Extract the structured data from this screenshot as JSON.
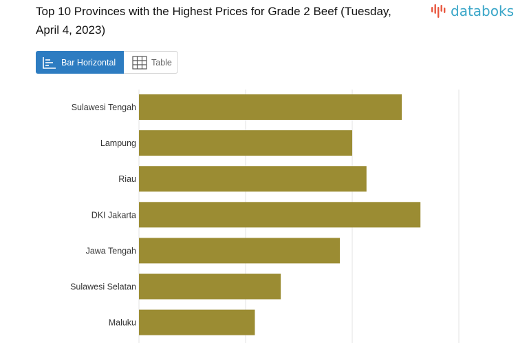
{
  "title": "Top 10 Provinces with the Highest Prices for Grade 2 Beef (Tuesday, April 4, 2023)",
  "brand": {
    "name": "databoks",
    "color": "#3aa6c8",
    "icon": "databoks-logo-icon"
  },
  "tabs": [
    {
      "label": "Bar Horizontal",
      "icon": "bar-chart-icon",
      "active": true
    },
    {
      "label": "Table",
      "icon": "table-icon",
      "active": false
    }
  ],
  "chart_data": {
    "type": "bar",
    "orientation": "horizontal",
    "categories": [
      "Sulawesi Tengah",
      "Lampung",
      "Riau",
      "DKI Jakarta",
      "Jawa Tengah",
      "Sulawesi Selatan",
      "Maluku"
    ],
    "values": [
      123250,
      100000,
      106700,
      132000,
      94200,
      66500,
      54350
    ],
    "xlim": [
      0,
      150000
    ],
    "grid": true,
    "bar_color": "#9b8c33",
    "grid_color": "#e3e3e3"
  }
}
